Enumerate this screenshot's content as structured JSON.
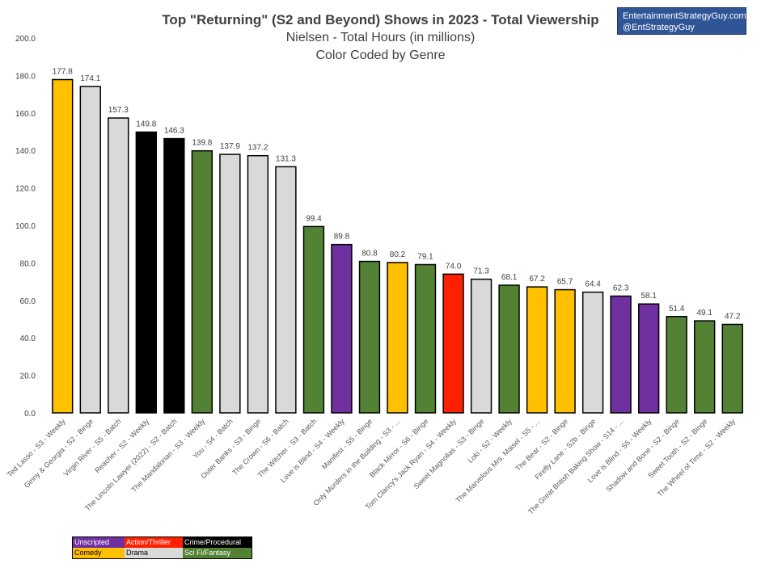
{
  "chart_data": {
    "type": "bar",
    "title": "Top \"Returning\" (S2 and Beyond) Shows in 2023 - Total Viewership",
    "subtitle_lines": [
      "Nielsen - Total Hours (in millions)",
      "Color Coded by Genre"
    ],
    "ylim": [
      0,
      200
    ],
    "yticks": [
      "0.0",
      "20.0",
      "40.0",
      "60.0",
      "80.0",
      "100.0",
      "120.0",
      "140.0",
      "160.0",
      "180.0",
      "200.0"
    ],
    "grid": false,
    "categories": [
      "Ted Lasso - S3 - Weekly",
      "Ginny & Georgia - S2 - Binge",
      "Virgin River - S5 - Batch",
      "Reacher - S2 - Weekly",
      "The Lincoln Lawyer (2022) - S2 - Batch",
      "The Mandalorian - S3 - Weekly",
      "You - S4 - Batch",
      "Outer Banks - S3 - Binge",
      "The Crown - S6 - Batch",
      "The Witcher - S3 - Batch",
      "Love is Blind - S4 - Weekly",
      "Manifest - S5 - Binge",
      "Only Murders in the Building - S3 - ...",
      "Black Mirror - S6 - Binge",
      "Tom Clancy's Jack Ryan - S4 - Weekly",
      "Sweet Magnolias - S3 - Binge",
      "Loki - S2 - Weekly",
      "The Marvelous Mrs. Maisel - S5 - ...",
      "The Bear - S2 - Binge",
      "Firefly Lane - S2b - Binge",
      "The Great British Baking Show - S14 - ...",
      "Love is Blind - S5 - Weekly",
      "Shadow and Bone - S2 - Binge",
      "Sweet Tooth - S2 - Binge",
      "The Wheel of Time - S2 - Weekly"
    ],
    "values": [
      177.8,
      174.1,
      157.3,
      149.8,
      146.3,
      139.8,
      137.9,
      137.2,
      131.3,
      99.4,
      89.8,
      80.8,
      80.2,
      79.1,
      74.0,
      71.3,
      68.1,
      67.2,
      65.7,
      64.4,
      62.3,
      58.1,
      51.4,
      49.1,
      47.2
    ],
    "value_labels": [
      "177.8",
      "174.1",
      "157.3",
      "149.8",
      "146.3",
      "139.8",
      "137.9",
      "137.2",
      "131.3",
      "99.4",
      "89.8",
      "80.8",
      "80.2",
      "79.1",
      "74.0",
      "71.3",
      "68.1",
      "67.2",
      "65.7",
      "64.4",
      "62.3",
      "58.1",
      "51.4",
      "49.1",
      "47.2"
    ],
    "genres": [
      "Comedy",
      "Drama",
      "Drama",
      "Crime/Procedural",
      "Crime/Procedural",
      "Sci Fi/Fantasy",
      "Drama",
      "Drama",
      "Drama",
      "Sci Fi/Fantasy",
      "Unscripted",
      "Sci Fi/Fantasy",
      "Comedy",
      "Sci Fi/Fantasy",
      "Action/Thriller",
      "Drama",
      "Sci Fi/Fantasy",
      "Comedy",
      "Comedy",
      "Drama",
      "Unscripted",
      "Unscripted",
      "Sci Fi/Fantasy",
      "Sci Fi/Fantasy",
      "Sci Fi/Fantasy"
    ],
    "genre_colors": {
      "Unscripted": "#7030A0",
      "Action/Thriller": "#FF2000",
      "Crime/Procedural": "#000000",
      "Comedy": "#FFC000",
      "Drama": "#D9D9D9",
      "Sci Fi/Fantasy": "#548235"
    },
    "legend": [
      {
        "label": "Unscripted",
        "color": "#7030A0",
        "text_color": "#ffffff"
      },
      {
        "label": "Action/Thriller",
        "color": "#FF2000",
        "text_color": "#ffffff"
      },
      {
        "label": "Crime/Procedural",
        "color": "#000000",
        "text_color": "#ffffff"
      },
      {
        "label": "Comedy",
        "color": "#FFC000",
        "text_color": "#000000"
      },
      {
        "label": "Drama",
        "color": "#D9D9D9",
        "text_color": "#000000"
      },
      {
        "label": "Sci Fi/Fantasy",
        "color": "#548235",
        "text_color": "#ffffff"
      }
    ]
  },
  "brand": {
    "line1": "EntertainmentStrategyGuy.com",
    "line2": "@EntStrategyGuy"
  }
}
